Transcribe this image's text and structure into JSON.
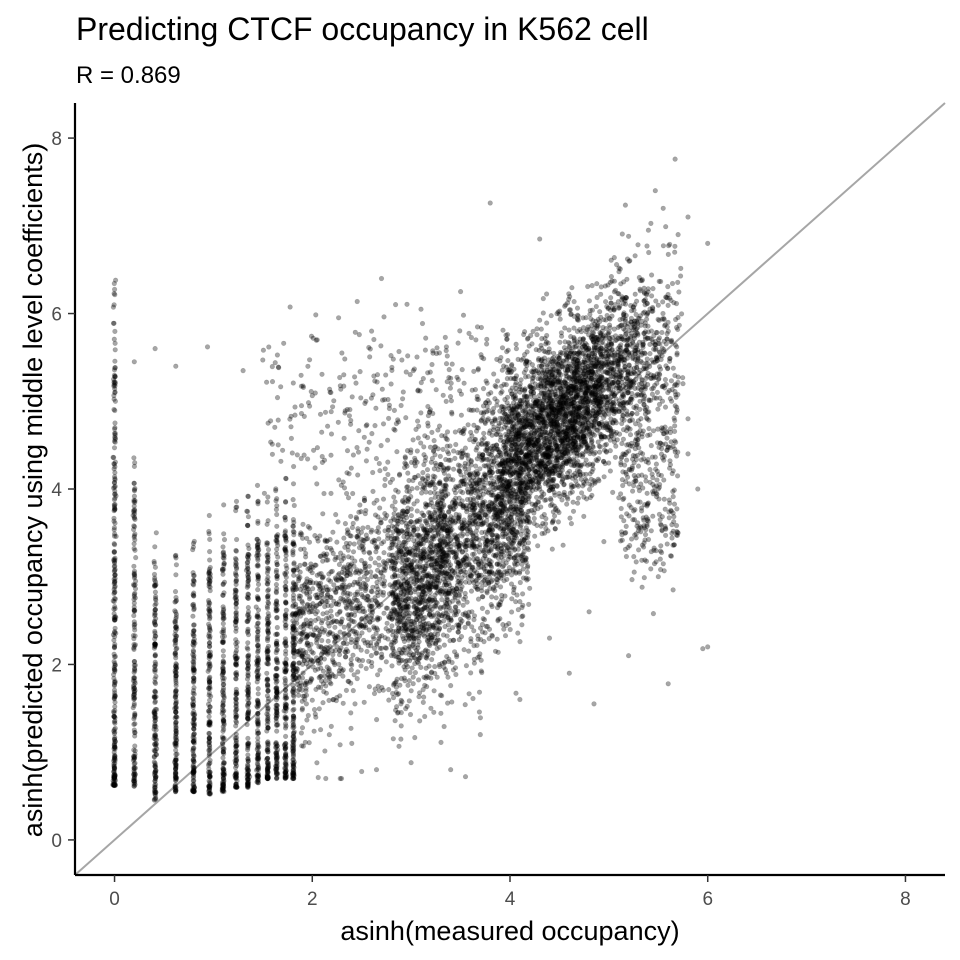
{
  "chart_data": {
    "type": "scatter",
    "title": "Predicting CTCF occupancy in K562 cell",
    "subtitle": "R = 0.869",
    "xlabel": "asinh(measured occupancy)",
    "ylabel": "asinh(predicted occupancy using middle level coefficients)",
    "xlim": [
      -0.4,
      8.4
    ],
    "ylim": [
      -0.4,
      8.4
    ],
    "x_ticks": [
      0,
      2,
      4,
      6,
      8
    ],
    "y_ticks": [
      0,
      2,
      4,
      6,
      8
    ],
    "x_tick_labels": [
      "0",
      "2",
      "4",
      "6",
      "8"
    ],
    "y_tick_labels": [
      "0",
      "2",
      "4",
      "6",
      "8"
    ],
    "grid": false,
    "reference_line": {
      "slope": 1,
      "intercept": 0,
      "color": "#a6a6a6"
    },
    "point_color": "#000000",
    "point_opacity": 0.35,
    "point_description": "dense cloud of tens of thousands of points; vertical stripes at discrete low measured values, main mass centered near (4.5, 4.8)",
    "stripes": [
      {
        "x": 0.0,
        "y_min": 0.62,
        "y_max": 6.5
      },
      {
        "x": 0.2,
        "y_min": 0.6,
        "y_max": 4.6
      },
      {
        "x": 0.41,
        "y_min": 0.45,
        "y_max": 3.55
      },
      {
        "x": 0.62,
        "y_min": 0.55,
        "y_max": 3.4
      },
      {
        "x": 0.8,
        "y_min": 0.55,
        "y_max": 3.5
      },
      {
        "x": 0.96,
        "y_min": 0.52,
        "y_max": 3.7
      },
      {
        "x": 1.1,
        "y_min": 0.55,
        "y_max": 3.9
      },
      {
        "x": 1.23,
        "y_min": 0.6,
        "y_max": 3.9
      },
      {
        "x": 1.35,
        "y_min": 0.6,
        "y_max": 4.0
      },
      {
        "x": 1.45,
        "y_min": 0.65,
        "y_max": 4.1
      },
      {
        "x": 1.55,
        "y_min": 0.7,
        "y_max": 4.0
      },
      {
        "x": 1.64,
        "y_min": 0.7,
        "y_max": 4.1
      },
      {
        "x": 1.73,
        "y_min": 0.7,
        "y_max": 4.2
      },
      {
        "x": 1.81,
        "y_min": 0.7,
        "y_max": 4.3
      }
    ],
    "sample_points": [
      [
        5.67,
        7.76
      ],
      [
        5.47,
        7.4
      ],
      [
        3.8,
        7.26
      ],
      [
        5.8,
        7.1
      ],
      [
        5.55,
        7.2
      ],
      [
        6.0,
        6.8
      ],
      [
        5.7,
        6.9
      ],
      [
        5.4,
        6.95
      ],
      [
        5.2,
        6.88
      ],
      [
        4.3,
        6.85
      ],
      [
        2.7,
        6.4
      ],
      [
        3.5,
        6.25
      ],
      [
        3.1,
        6.05
      ],
      [
        2.6,
        5.8
      ],
      [
        0.41,
        5.6
      ],
      [
        0.2,
        5.45
      ],
      [
        0.62,
        5.4
      ],
      [
        0.94,
        5.62
      ],
      [
        1.5,
        5.47
      ],
      [
        1.3,
        5.35
      ],
      [
        2.05,
        5.7
      ],
      [
        2.3,
        5.55
      ],
      [
        5.75,
        5.2
      ],
      [
        5.8,
        4.8
      ],
      [
        5.8,
        4.4
      ],
      [
        5.9,
        4.0
      ],
      [
        5.7,
        3.5
      ],
      [
        5.5,
        3.0
      ],
      [
        5.65,
        2.85
      ],
      [
        5.45,
        2.58
      ],
      [
        5.95,
        2.18
      ],
      [
        6.0,
        2.2
      ],
      [
        5.6,
        1.78
      ],
      [
        4.85,
        1.55
      ],
      [
        5.2,
        2.1
      ],
      [
        4.6,
        1.9
      ],
      [
        3.55,
        0.72
      ],
      [
        3.4,
        0.8
      ],
      [
        3.0,
        0.88
      ],
      [
        2.65,
        0.8
      ],
      [
        2.5,
        0.78
      ],
      [
        4.8,
        2.6
      ],
      [
        4.95,
        3.4
      ],
      [
        5.1,
        3.9
      ],
      [
        4.4,
        2.3
      ],
      [
        3.2,
        1.5
      ],
      [
        3.7,
        1.2
      ],
      [
        4.1,
        1.6
      ],
      [
        2.9,
        1.3
      ],
      [
        2.4,
        1.1
      ]
    ]
  }
}
